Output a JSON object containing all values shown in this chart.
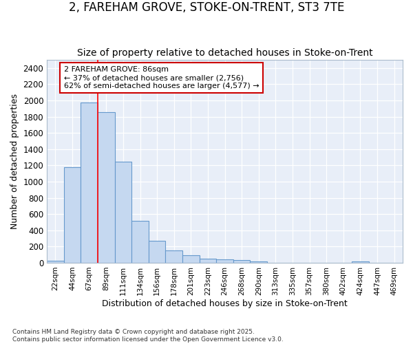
{
  "title1": "2, FAREHAM GROVE, STOKE-ON-TRENT, ST3 7TE",
  "title2": "Size of property relative to detached houses in Stoke-on-Trent",
  "xlabel": "Distribution of detached houses by size in Stoke-on-Trent",
  "ylabel": "Number of detached properties",
  "categories": [
    "22sqm",
    "44sqm",
    "67sqm",
    "89sqm",
    "111sqm",
    "134sqm",
    "156sqm",
    "178sqm",
    "201sqm",
    "223sqm",
    "246sqm",
    "268sqm",
    "290sqm",
    "313sqm",
    "335sqm",
    "357sqm",
    "380sqm",
    "402sqm",
    "424sqm",
    "447sqm",
    "469sqm"
  ],
  "values": [
    28,
    1175,
    1975,
    1855,
    1245,
    520,
    275,
    155,
    92,
    50,
    42,
    35,
    18,
    0,
    0,
    0,
    0,
    0,
    14,
    0,
    0
  ],
  "bar_color": "#c5d8f0",
  "bar_edge_color": "#6699cc",
  "red_line_x": 3.0,
  "annotation_text": "2 FAREHAM GROVE: 86sqm\n← 37% of detached houses are smaller (2,756)\n62% of semi-detached houses are larger (4,577) →",
  "annotation_box_color": "#ffffff",
  "annotation_box_edge": "#cc0000",
  "footer1": "Contains HM Land Registry data © Crown copyright and database right 2025.",
  "footer2": "Contains public sector information licensed under the Open Government Licence v3.0.",
  "ylim": [
    0,
    2500
  ],
  "yticks": [
    0,
    200,
    400,
    600,
    800,
    1000,
    1200,
    1400,
    1600,
    1800,
    2000,
    2200,
    2400
  ],
  "bg_color": "#ffffff",
  "plot_bg_color": "#e8eef8",
  "grid_color": "#ffffff",
  "title1_fontsize": 12,
  "title2_fontsize": 10
}
